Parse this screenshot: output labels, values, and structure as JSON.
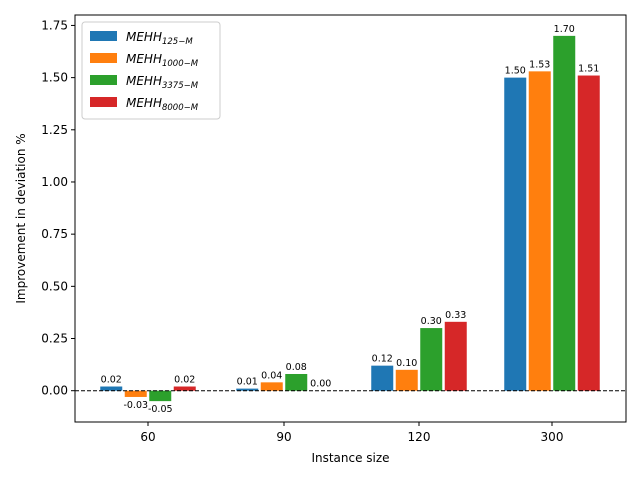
{
  "chart_data": {
    "type": "bar",
    "xlabel": "Instance size",
    "ylabel": "Improvement in deviation %",
    "categories": [
      "60",
      "90",
      "120",
      "300"
    ],
    "ylim": [
      -0.15,
      1.8
    ],
    "yticks": [
      "0.00",
      "0.25",
      "0.50",
      "0.75",
      "1.00",
      "1.25",
      "1.50",
      "1.75"
    ],
    "ytick_values": [
      0,
      0.25,
      0.5,
      0.75,
      1.0,
      1.25,
      1.5,
      1.75
    ],
    "zero_line": "dashed",
    "grid": false,
    "legend_position": "top-left",
    "series": [
      {
        "name": "MEHH",
        "name_sub": "125−M",
        "color": "#1f77b4",
        "values": [
          0.02,
          0.01,
          0.12,
          1.5
        ],
        "labels": [
          "0.02",
          "0.01",
          "0.12",
          "1.50"
        ]
      },
      {
        "name": "MEHH",
        "name_sub": "1000−M",
        "color": "#ff7f0e",
        "values": [
          -0.03,
          0.04,
          0.1,
          1.53
        ],
        "labels": [
          "-0.03",
          "0.04",
          "0.10",
          "1.53"
        ]
      },
      {
        "name": "MEHH",
        "name_sub": "3375−M",
        "color": "#2ca02c",
        "values": [
          -0.05,
          0.08,
          0.3,
          1.7
        ],
        "labels": [
          "-0.05",
          "0.08",
          "0.30",
          "1.70"
        ]
      },
      {
        "name": "MEHH",
        "name_sub": "8000−M",
        "color": "#d62728",
        "values": [
          0.02,
          0.0,
          0.33,
          1.51
        ],
        "labels": [
          "0.02",
          "0.00",
          "0.33",
          "1.51"
        ]
      }
    ]
  }
}
